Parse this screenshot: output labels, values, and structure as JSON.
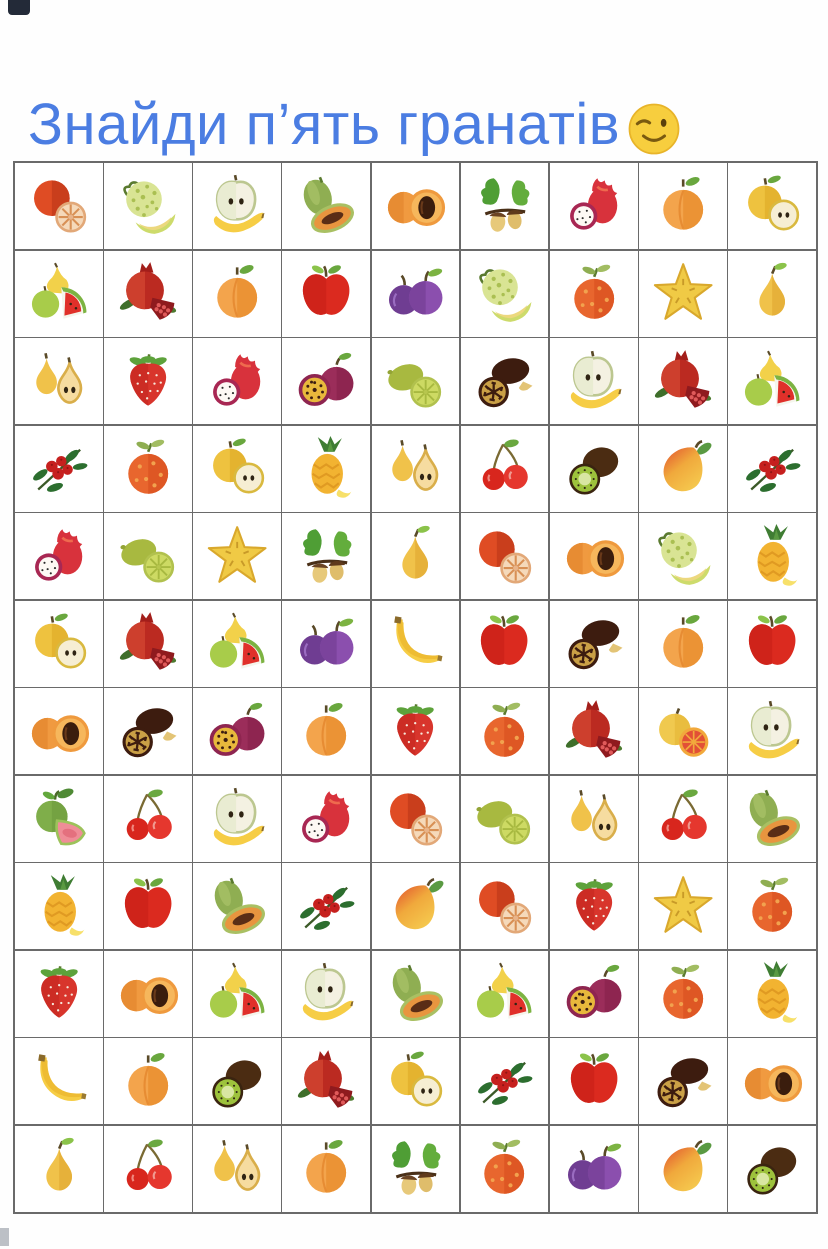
{
  "title": {
    "text": "Знайди п’ять гранатів",
    "emoji": "winking-face",
    "color": "#4b7de2"
  },
  "grid": {
    "columns": 9,
    "rows": 12,
    "line_color": "#6a6a6a",
    "cell_background": "#ffffff",
    "cells": [
      [
        "orange-with-slice",
        "melon",
        "apple-half-banana",
        "papaya",
        "apricot-half",
        "acorns",
        "dragon-fruit",
        "apricot",
        "yellow-apple"
      ],
      [
        "fruit-mix",
        "pomegranate",
        "apricot",
        "red-apple",
        "plums",
        "melon",
        "orange-dotted",
        "star-fruit",
        "pear"
      ],
      [
        "pears",
        "strawberry",
        "dragon-fruit",
        "passion-fruit",
        "lime",
        "tamarind",
        "apple-half-banana",
        "pomegranate",
        "fruit-mix"
      ],
      [
        "cranberries",
        "orange-dotted",
        "yellow-apple",
        "pineapple",
        "pears",
        "cherries",
        "kiwi",
        "mango",
        "cranberries"
      ],
      [
        "dragon-fruit",
        "lime",
        "star-fruit",
        "acorns",
        "pear",
        "orange-with-slice",
        "apricot-half",
        "melon",
        "pineapple"
      ],
      [
        "yellow-apple",
        "pomegranate",
        "fruit-mix",
        "plums",
        "bananas",
        "red-apple",
        "tamarind",
        "apricot",
        "red-apple"
      ],
      [
        "apricot-half",
        "tamarind",
        "passion-fruit",
        "apricot",
        "strawberry",
        "orange-dotted",
        "pomegranate",
        "grapefruit",
        "apple-half-banana"
      ],
      [
        "guava",
        "cherries",
        "apple-half-banana",
        "dragon-fruit",
        "orange-with-slice",
        "lime",
        "pears",
        "cherries",
        "papaya"
      ],
      [
        "pineapple",
        "red-apple",
        "papaya",
        "cranberries",
        "mango",
        "orange-with-slice",
        "strawberry",
        "star-fruit",
        "orange-dotted"
      ],
      [
        "strawberry",
        "apricot-half",
        "fruit-mix",
        "apple-half-banana",
        "papaya",
        "fruit-mix",
        "passion-fruit",
        "orange-dotted",
        "pineapple"
      ],
      [
        "bananas",
        "apricot",
        "kiwi",
        "pomegranate",
        "yellow-apple",
        "cranberries",
        "red-apple",
        "tamarind",
        "apricot-half"
      ],
      [
        "pear",
        "cherries",
        "pears",
        "apricot",
        "acorns",
        "orange-dotted",
        "plums",
        "mango",
        "kiwi"
      ]
    ]
  }
}
